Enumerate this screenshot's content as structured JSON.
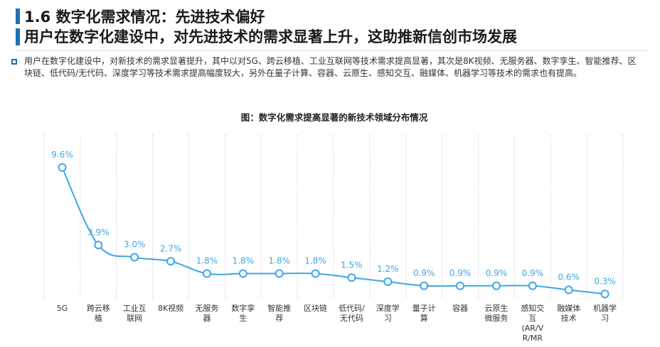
{
  "header": {
    "title_line1": "1.6 数字化需求情况：先进技术偏好",
    "title_line2": "用户在数字化建设中，对先进技术的需求显著上升，这助推新信创市场发展"
  },
  "body": {
    "paragraph": "用户在数字化建设中，对新技术的需求显著提升，其中以对5G、跨云移植、工业互联网等技术需求提高显著，其次是8K视频、无服务器、数字孪生、智能推荐、区块链、低代码/无代码、深度学习等技术需求提高幅度较大，另外在量子计算、容器、云原生、感知交互、融媒体、机器学习等技术的需求也有提高。"
  },
  "chart_data": {
    "type": "line",
    "title": "图：数字化需求提高显著的新技术领域分布情况",
    "categories": [
      "5G",
      "跨云移植",
      "工业互联网",
      "8K视频",
      "无服务器",
      "数字孪生",
      "智能推荐",
      "区块链",
      "低代码/无代码",
      "深度学习",
      "量子计算",
      "容器",
      "云原生微服务",
      "感知交互(AR/VR/MR)",
      "融媒体技术",
      "机器学习"
    ],
    "category_lines": [
      [
        "5G"
      ],
      [
        "跨云移",
        "植"
      ],
      [
        "工业互",
        "联网"
      ],
      [
        "8K视频"
      ],
      [
        "无服务",
        "器"
      ],
      [
        "数字孪",
        "生"
      ],
      [
        "智能推",
        "荐"
      ],
      [
        "区块链"
      ],
      [
        "低代码/",
        "无代码"
      ],
      [
        "深度学",
        "习"
      ],
      [
        "量子计",
        "算"
      ],
      [
        "容器"
      ],
      [
        "云原生",
        "微服务"
      ],
      [
        "感知交",
        "互",
        "(AR/V",
        "R/MR"
      ],
      [
        "融媒体",
        "技术"
      ],
      [
        "机器学",
        "习"
      ]
    ],
    "values": [
      9.6,
      3.9,
      3.0,
      2.7,
      1.8,
      1.8,
      1.8,
      1.8,
      1.5,
      1.2,
      0.9,
      0.9,
      0.9,
      0.9,
      0.6,
      0.3
    ],
    "data_labels": [
      "9.6%",
      "3.9%",
      "3.0%",
      "2.7%",
      "1.8%",
      "1.8%",
      "1.8%",
      "1.8%",
      "1.5%",
      "1.2%",
      "0.9%",
      "0.9%",
      "0.9%",
      "0.9%",
      "0.6%",
      "0.3%"
    ],
    "unit": "%",
    "ylim": [
      0,
      12
    ],
    "grid": "vertical",
    "legend": "none",
    "colors": {
      "line": "#3ea7e3",
      "label": "#3ea7e3",
      "grid": "#cfd6de",
      "title": "#222222"
    }
  }
}
